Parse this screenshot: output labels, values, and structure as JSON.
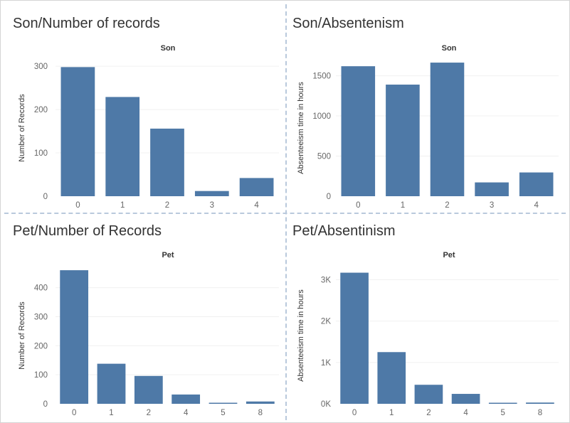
{
  "colors": {
    "bar": "#4e79a7",
    "grid": "#f0f0f0",
    "divider": "#b9c9dc"
  },
  "panels": [
    {
      "title": "Son/Number of records",
      "chart_data": {
        "type": "bar",
        "header": "Son",
        "categories": [
          "0",
          "1",
          "2",
          "3",
          "4"
        ],
        "values": [
          298,
          229,
          156,
          12,
          42
        ],
        "ylabel": "Number of Records",
        "ylim": [
          0,
          315
        ],
        "yticks": [
          0,
          100,
          200,
          300
        ],
        "ytick_labels": [
          "0",
          "100",
          "200",
          "300"
        ]
      }
    },
    {
      "title": "Son/Absentenism",
      "chart_data": {
        "type": "bar",
        "header": "Son",
        "categories": [
          "0",
          "1",
          "2",
          "3",
          "4"
        ],
        "values": [
          1619,
          1390,
          1664,
          172,
          296
        ],
        "ylabel": "Absenteeism time in hours",
        "ylim": [
          0,
          1700
        ],
        "yticks": [
          0,
          500,
          1000,
          1500
        ],
        "ytick_labels": [
          "0",
          "500",
          "1000",
          "1500"
        ]
      }
    },
    {
      "title": "Pet/Number of Records",
      "chart_data": {
        "type": "bar",
        "header": "Pet",
        "categories": [
          "0",
          "1",
          "2",
          "4",
          "5",
          "8"
        ],
        "values": [
          460,
          138,
          96,
          32,
          2,
          8
        ],
        "ylabel": "Number of Records",
        "ylim": [
          0,
          470
        ],
        "yticks": [
          0,
          100,
          200,
          300,
          400
        ],
        "ytick_labels": [
          "0",
          "100",
          "200",
          "300",
          "400"
        ]
      }
    },
    {
      "title": "Pet/Absentinism",
      "chart_data": {
        "type": "bar",
        "header": "Pet",
        "categories": [
          "0",
          "1",
          "2",
          "4",
          "5",
          "8"
        ],
        "values": [
          3170,
          1250,
          460,
          240,
          25,
          30
        ],
        "ylabel": "Absenteeism time in hours",
        "ylim": [
          0,
          3300
        ],
        "yticks": [
          0,
          1000,
          2000,
          3000
        ],
        "ytick_labels": [
          "0K",
          "1K",
          "2K",
          "3K"
        ]
      }
    }
  ]
}
